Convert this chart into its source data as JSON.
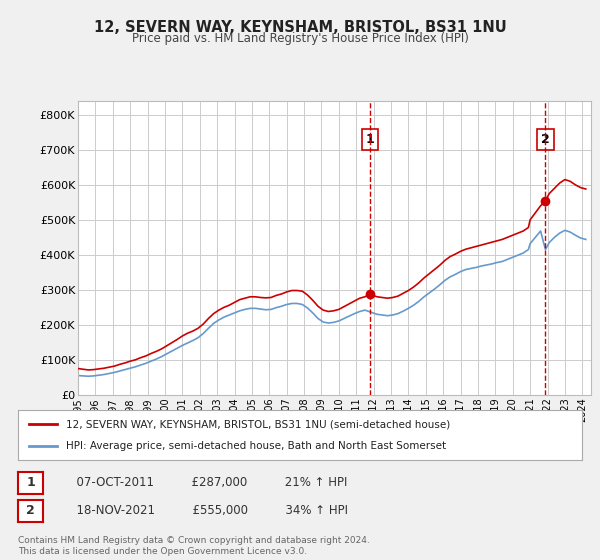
{
  "title": "12, SEVERN WAY, KEYNSHAM, BRISTOL, BS31 1NU",
  "subtitle": "Price paid vs. HM Land Registry's House Price Index (HPI)",
  "red_label": "12, SEVERN WAY, KEYNSHAM, BRISTOL, BS31 1NU (semi-detached house)",
  "blue_label": "HPI: Average price, semi-detached house, Bath and North East Somerset",
  "footer": "Contains HM Land Registry data © Crown copyright and database right 2024.\nThis data is licensed under the Open Government Licence v3.0.",
  "annotation1": {
    "label": "1",
    "date": "07-OCT-2011",
    "price": "£287,000",
    "change": "21% ↑ HPI"
  },
  "annotation2": {
    "label": "2",
    "date": "18-NOV-2021",
    "price": "£555,000",
    "change": "34% ↑ HPI"
  },
  "ylim": [
    0,
    840000
  ],
  "yticks": [
    0,
    100000,
    200000,
    300000,
    400000,
    500000,
    600000,
    700000,
    800000
  ],
  "ytick_labels": [
    "£0",
    "£100K",
    "£200K",
    "£300K",
    "£400K",
    "£500K",
    "£600K",
    "£700K",
    "£800K"
  ],
  "red_color": "#cc0000",
  "blue_color": "#6699cc",
  "vline_color": "#cc0000",
  "background_color": "#f0f0f0",
  "plot_bg": "#ffffff",
  "red_x": [
    1995.0,
    1995.3,
    1995.6,
    1995.9,
    1996.2,
    1996.5,
    1996.8,
    1997.1,
    1997.4,
    1997.7,
    1998.0,
    1998.3,
    1998.6,
    1998.9,
    1999.2,
    1999.5,
    1999.8,
    2000.1,
    2000.4,
    2000.7,
    2001.0,
    2001.3,
    2001.6,
    2001.9,
    2002.2,
    2002.5,
    2002.8,
    2003.1,
    2003.4,
    2003.7,
    2004.0,
    2004.3,
    2004.6,
    2004.9,
    2005.2,
    2005.5,
    2005.8,
    2006.1,
    2006.4,
    2006.7,
    2007.0,
    2007.3,
    2007.6,
    2007.9,
    2008.2,
    2008.5,
    2008.8,
    2009.1,
    2009.4,
    2009.7,
    2010.0,
    2010.3,
    2010.6,
    2010.9,
    2011.2,
    2011.5,
    2011.78,
    2011.9,
    2012.2,
    2012.5,
    2012.8,
    2013.1,
    2013.4,
    2013.7,
    2014.0,
    2014.3,
    2014.6,
    2014.9,
    2015.2,
    2015.5,
    2015.8,
    2016.1,
    2016.4,
    2016.7,
    2017.0,
    2017.3,
    2017.6,
    2017.9,
    2018.2,
    2018.5,
    2018.8,
    2019.1,
    2019.4,
    2019.7,
    2020.0,
    2020.3,
    2020.6,
    2020.9,
    2021.0,
    2021.3,
    2021.6,
    2021.88,
    2022.1,
    2022.4,
    2022.7,
    2023.0,
    2023.3,
    2023.6,
    2023.9,
    2024.2
  ],
  "red_y": [
    75000,
    73000,
    71000,
    72000,
    74000,
    76000,
    79000,
    82000,
    87000,
    91000,
    96000,
    100000,
    106000,
    111000,
    118000,
    124000,
    131000,
    140000,
    149000,
    158000,
    168000,
    176000,
    182000,
    190000,
    202000,
    218000,
    232000,
    242000,
    250000,
    256000,
    264000,
    272000,
    276000,
    280000,
    280000,
    278000,
    277000,
    278000,
    284000,
    288000,
    294000,
    298000,
    298000,
    296000,
    285000,
    270000,
    253000,
    242000,
    238000,
    240000,
    244000,
    252000,
    260000,
    268000,
    276000,
    280000,
    287000,
    285000,
    280000,
    278000,
    276000,
    278000,
    282000,
    290000,
    298000,
    308000,
    320000,
    334000,
    346000,
    358000,
    370000,
    384000,
    395000,
    402000,
    410000,
    416000,
    420000,
    424000,
    428000,
    432000,
    436000,
    440000,
    444000,
    450000,
    456000,
    462000,
    468000,
    478000,
    500000,
    520000,
    540000,
    555000,
    575000,
    590000,
    605000,
    615000,
    610000,
    600000,
    592000,
    588000
  ],
  "blue_x": [
    1995.0,
    1995.3,
    1995.6,
    1995.9,
    1996.2,
    1996.5,
    1996.8,
    1997.1,
    1997.4,
    1997.7,
    1998.0,
    1998.3,
    1998.6,
    1998.9,
    1999.2,
    1999.5,
    1999.8,
    2000.1,
    2000.4,
    2000.7,
    2001.0,
    2001.3,
    2001.6,
    2001.9,
    2002.2,
    2002.5,
    2002.8,
    2003.1,
    2003.4,
    2003.7,
    2004.0,
    2004.3,
    2004.6,
    2004.9,
    2005.2,
    2005.5,
    2005.8,
    2006.1,
    2006.4,
    2006.7,
    2007.0,
    2007.3,
    2007.6,
    2007.9,
    2008.2,
    2008.5,
    2008.8,
    2009.1,
    2009.4,
    2009.7,
    2010.0,
    2010.3,
    2010.6,
    2010.9,
    2011.2,
    2011.5,
    2011.78,
    2011.9,
    2012.2,
    2012.5,
    2012.8,
    2013.1,
    2013.4,
    2013.7,
    2014.0,
    2014.3,
    2014.6,
    2014.9,
    2015.2,
    2015.5,
    2015.8,
    2016.1,
    2016.4,
    2016.7,
    2017.0,
    2017.3,
    2017.6,
    2017.9,
    2018.2,
    2018.5,
    2018.8,
    2019.1,
    2019.4,
    2019.7,
    2020.0,
    2020.3,
    2020.6,
    2020.9,
    2021.0,
    2021.3,
    2021.6,
    2021.88,
    2022.1,
    2022.4,
    2022.7,
    2023.0,
    2023.3,
    2023.6,
    2023.9,
    2024.2
  ],
  "blue_y": [
    55000,
    54000,
    53000,
    54000,
    56000,
    58000,
    61000,
    64000,
    68000,
    72000,
    76000,
    80000,
    85000,
    90000,
    96000,
    102000,
    109000,
    117000,
    125000,
    133000,
    141000,
    148000,
    155000,
    163000,
    175000,
    190000,
    204000,
    214000,
    222000,
    228000,
    234000,
    240000,
    244000,
    247000,
    247000,
    245000,
    243000,
    244000,
    249000,
    253000,
    258000,
    261000,
    261000,
    258000,
    248000,
    234000,
    218000,
    208000,
    205000,
    207000,
    211000,
    218000,
    225000,
    232000,
    238000,
    242000,
    237000,
    235000,
    230000,
    228000,
    226000,
    228000,
    232000,
    239000,
    247000,
    256000,
    267000,
    280000,
    291000,
    302000,
    314000,
    327000,
    337000,
    344000,
    352000,
    358000,
    361000,
    364000,
    368000,
    371000,
    374000,
    378000,
    381000,
    387000,
    393000,
    399000,
    405000,
    415000,
    432000,
    450000,
    468000,
    415000,
    435000,
    450000,
    462000,
    470000,
    465000,
    456000,
    448000,
    444000
  ],
  "vline1_x": 2011.78,
  "vline2_x": 2021.88,
  "marker1_x": 2011.78,
  "marker1_y": 287000,
  "marker2_x": 2021.88,
  "marker2_y": 555000,
  "xmin": 1995.0,
  "xmax": 2024.5,
  "xticks": [
    1995,
    1996,
    1997,
    1998,
    1999,
    2000,
    2001,
    2002,
    2003,
    2004,
    2005,
    2006,
    2007,
    2008,
    2009,
    2010,
    2011,
    2012,
    2013,
    2014,
    2015,
    2016,
    2017,
    2018,
    2019,
    2020,
    2021,
    2022,
    2023,
    2024
  ]
}
